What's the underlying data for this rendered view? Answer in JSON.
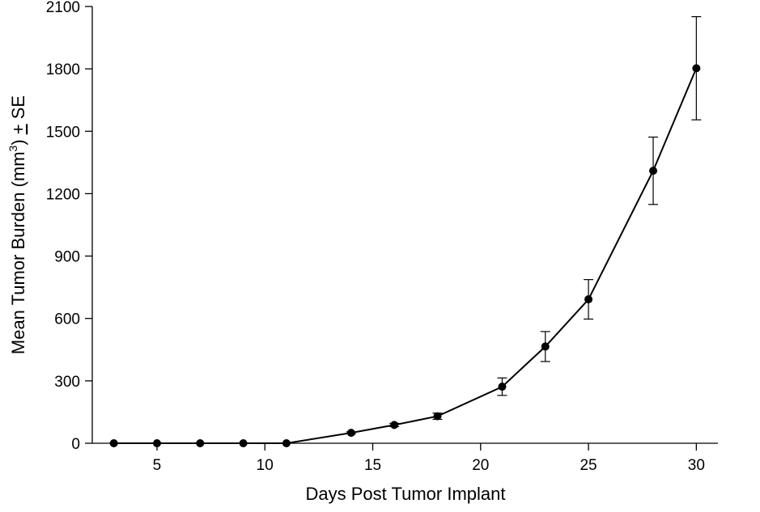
{
  "chart_data": {
    "type": "line",
    "title": "",
    "xlabel": "Days Post Tumor Implant",
    "ylabel": {
      "main": "Mean Tumor Burden (mm",
      "superscript": "3",
      "after": ") ",
      "pm": "+",
      "se": " SE"
    },
    "xlim": [
      2,
      31
    ],
    "ylim": [
      0,
      2100
    ],
    "xticks": [
      5,
      10,
      15,
      20,
      25,
      30
    ],
    "yticks": [
      0,
      300,
      600,
      900,
      1200,
      1500,
      1800,
      2100
    ],
    "grid": false,
    "legend": "none",
    "series": [
      {
        "color": "#000000",
        "x": [
          3,
          5,
          7,
          9,
          11,
          14,
          16,
          18,
          21,
          23,
          25,
          28,
          30
        ],
        "y": [
          0,
          0,
          0,
          0,
          0,
          50,
          88,
          130,
          272,
          465,
          692,
          1310,
          1803
        ],
        "error": [
          0,
          0,
          0,
          0,
          0,
          5,
          8,
          15,
          42,
          72,
          95,
          162,
          248
        ]
      }
    ]
  }
}
